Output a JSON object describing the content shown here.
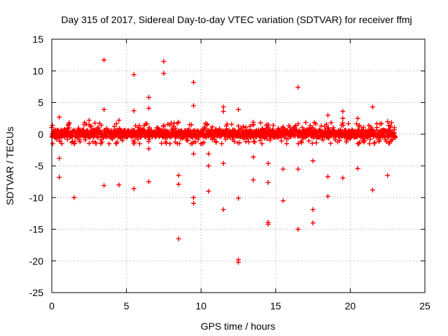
{
  "chart_data": {
    "type": "scatter",
    "title": "Day 315 of 2017, Sidereal Day-to-day VTEC variation (SDTVAR) for receiver ffmj",
    "xlabel": "GPS time / hours",
    "ylabel": "SDTVAR / TECUs",
    "xlim": [
      0,
      25
    ],
    "ylim": [
      -25,
      15
    ],
    "xticks": [
      0,
      5,
      10,
      15,
      20,
      25
    ],
    "yticks": [
      -25,
      -20,
      -15,
      -10,
      -5,
      0,
      5,
      10,
      15
    ],
    "grid": true,
    "marker": "+",
    "color": "#ff0000",
    "series": [
      {
        "name": "SDTVAR",
        "description": "Dense band of points between about -1.5 and +2 TECU over 0-23 h, plus scattered outliers listed below",
        "band": {
          "x_start": 0,
          "x_end": 23,
          "y_low": -1.5,
          "y_high": 2
        },
        "outliers": [
          [
            0.5,
            2.7
          ],
          [
            0.5,
            -3.8
          ],
          [
            0.5,
            -6.8
          ],
          [
            1.5,
            -10.0
          ],
          [
            2.5,
            2.2
          ],
          [
            3.5,
            11.7
          ],
          [
            3.5,
            3.9
          ],
          [
            3.5,
            -8.1
          ],
          [
            4.5,
            2.2
          ],
          [
            4.5,
            -8.0
          ],
          [
            5.5,
            9.4
          ],
          [
            5.5,
            3.7
          ],
          [
            5.5,
            -8.6
          ],
          [
            6.5,
            5.8
          ],
          [
            6.5,
            4.1
          ],
          [
            6.5,
            -2.3
          ],
          [
            6.5,
            -7.5
          ],
          [
            7.5,
            11.5
          ],
          [
            7.5,
            9.6
          ],
          [
            7.5,
            1.4
          ],
          [
            8.5,
            1.9
          ],
          [
            8.5,
            -6.5
          ],
          [
            8.5,
            -7.9
          ],
          [
            8.5,
            -16.5
          ],
          [
            9.5,
            8.2
          ],
          [
            9.5,
            4.5
          ],
          [
            9.5,
            -3.1
          ],
          [
            9.5,
            -10.0
          ],
          [
            9.5,
            -10.9
          ],
          [
            10.5,
            -3.1
          ],
          [
            10.5,
            -5.0
          ],
          [
            10.5,
            -9.0
          ],
          [
            11.5,
            4.3
          ],
          [
            11.5,
            3.6
          ],
          [
            11.5,
            -4.6
          ],
          [
            11.5,
            -11.9
          ],
          [
            12.5,
            3.9
          ],
          [
            12.5,
            -10.1
          ],
          [
            12.5,
            -19.8
          ],
          [
            12.5,
            -20.2
          ],
          [
            13.5,
            1.9
          ],
          [
            13.5,
            -3.6
          ],
          [
            13.5,
            -7.2
          ],
          [
            14.5,
            1.5
          ],
          [
            14.5,
            -4.6
          ],
          [
            14.5,
            -7.6
          ],
          [
            14.5,
            -13.9
          ],
          [
            14.5,
            -14.2
          ],
          [
            15.5,
            1.0
          ],
          [
            15.5,
            -5.5
          ],
          [
            15.5,
            -10.5
          ],
          [
            16.5,
            7.4
          ],
          [
            16.5,
            -5.5
          ],
          [
            16.5,
            -15.0
          ],
          [
            17.5,
            1.0
          ],
          [
            17.5,
            -4.2
          ],
          [
            17.5,
            -11.9
          ],
          [
            17.5,
            -14.0
          ],
          [
            18.5,
            3.0
          ],
          [
            18.5,
            -6.7
          ],
          [
            18.5,
            -9.8
          ],
          [
            19.5,
            3.6
          ],
          [
            19.5,
            2.5
          ],
          [
            19.5,
            -6.9
          ],
          [
            20.5,
            2.5
          ],
          [
            20.5,
            -1.5
          ],
          [
            20.5,
            -5.4
          ],
          [
            21.5,
            4.3
          ],
          [
            21.5,
            -8.8
          ],
          [
            22.5,
            2.0
          ],
          [
            22.5,
            -6.5
          ]
        ]
      }
    ]
  }
}
